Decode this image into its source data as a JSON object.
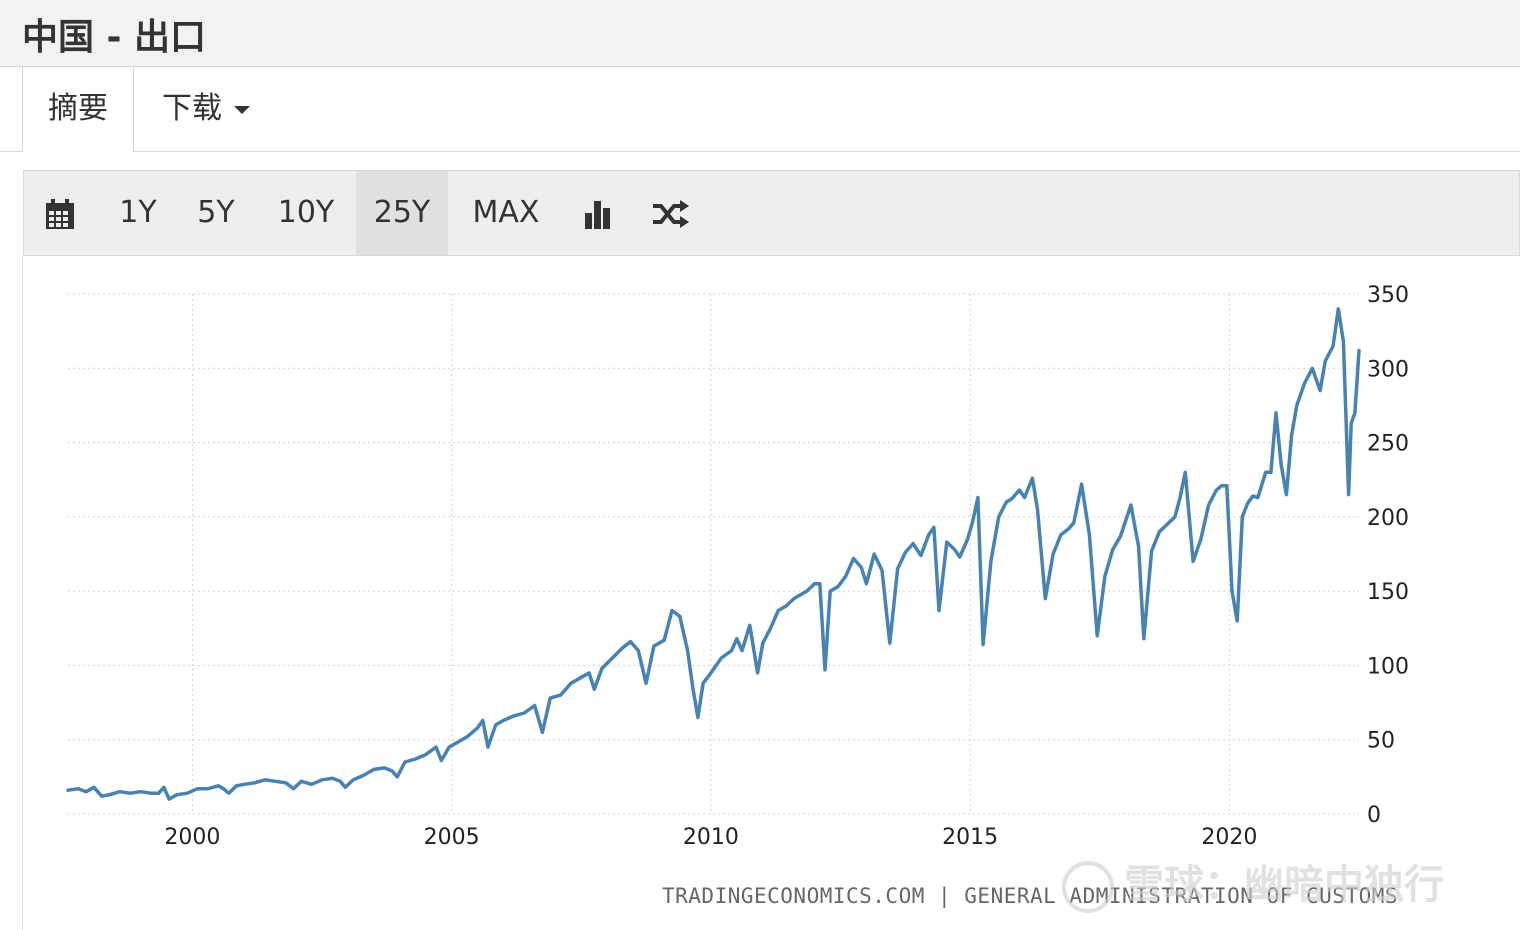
{
  "page": {
    "title": "中国 - 出口"
  },
  "tabs": [
    {
      "label": "摘要"
    },
    {
      "label": "下载"
    }
  ],
  "toolbar": {
    "calendar_icon": "calendar-icon",
    "ranges": [
      "1Y",
      "5Y",
      "10Y",
      "25Y",
      "MAX"
    ],
    "selected_range": "25Y",
    "bar_chart_icon": "bar-chart-icon",
    "shuffle_icon": "shuffle-icon"
  },
  "credit": "TRADINGECONOMICS.COM | GENERAL ADMINISTRATION OF CUSTOMS",
  "watermark": "雪球：幽暗中独行",
  "colors": {
    "line": "#4682b4",
    "grid": "#d3d3d3"
  },
  "chart_data": {
    "type": "line",
    "title": "",
    "xlabel": "",
    "ylabel": "",
    "x_ticks": [
      2000,
      2005,
      2010,
      2015,
      2020
    ],
    "y_ticks": [
      0,
      50,
      100,
      150,
      200,
      250,
      300,
      350
    ],
    "xlim": [
      1997.6,
      2022.5
    ],
    "ylim": [
      0,
      350
    ],
    "grid": true,
    "y_axis_side": "right",
    "series": [
      {
        "name": "",
        "points": [
          [
            1997.6,
            16
          ],
          [
            1997.8,
            17
          ],
          [
            1997.95,
            15
          ],
          [
            1998.1,
            18
          ],
          [
            1998.25,
            12
          ],
          [
            1998.4,
            13
          ],
          [
            1998.6,
            15
          ],
          [
            1998.8,
            14
          ],
          [
            1999.0,
            15
          ],
          [
            1999.2,
            14
          ],
          [
            1999.35,
            14
          ],
          [
            1999.45,
            18
          ],
          [
            1999.55,
            10
          ],
          [
            1999.7,
            13
          ],
          [
            1999.9,
            14
          ],
          [
            2000.1,
            17
          ],
          [
            2000.3,
            17
          ],
          [
            2000.5,
            19
          ],
          [
            2000.6,
            17
          ],
          [
            2000.7,
            14
          ],
          [
            2000.85,
            19
          ],
          [
            2001.0,
            20
          ],
          [
            2001.2,
            21
          ],
          [
            2001.4,
            23
          ],
          [
            2001.6,
            22
          ],
          [
            2001.8,
            21
          ],
          [
            2001.95,
            17
          ],
          [
            2002.1,
            22
          ],
          [
            2002.3,
            20
          ],
          [
            2002.5,
            23
          ],
          [
            2002.7,
            24
          ],
          [
            2002.85,
            22
          ],
          [
            2002.95,
            18
          ],
          [
            2003.1,
            23
          ],
          [
            2003.3,
            26
          ],
          [
            2003.5,
            30
          ],
          [
            2003.7,
            31
          ],
          [
            2003.85,
            29
          ],
          [
            2003.95,
            25
          ],
          [
            2004.1,
            35
          ],
          [
            2004.3,
            37
          ],
          [
            2004.5,
            40
          ],
          [
            2004.7,
            45
          ],
          [
            2004.8,
            36
          ],
          [
            2004.95,
            45
          ],
          [
            2005.1,
            48
          ],
          [
            2005.3,
            52
          ],
          [
            2005.5,
            58
          ],
          [
            2005.6,
            63
          ],
          [
            2005.7,
            45
          ],
          [
            2005.85,
            60
          ],
          [
            2006.0,
            63
          ],
          [
            2006.2,
            66
          ],
          [
            2006.4,
            68
          ],
          [
            2006.6,
            73
          ],
          [
            2006.75,
            55
          ],
          [
            2006.9,
            78
          ],
          [
            2007.1,
            80
          ],
          [
            2007.3,
            88
          ],
          [
            2007.5,
            92
          ],
          [
            2007.65,
            95
          ],
          [
            2007.75,
            84
          ],
          [
            2007.9,
            98
          ],
          [
            2008.1,
            105
          ],
          [
            2008.3,
            112
          ],
          [
            2008.45,
            116
          ],
          [
            2008.6,
            110
          ],
          [
            2008.75,
            88
          ],
          [
            2008.9,
            113
          ],
          [
            2009.1,
            117
          ],
          [
            2009.25,
            137
          ],
          [
            2009.4,
            133
          ],
          [
            2009.55,
            110
          ],
          [
            2009.65,
            85
          ],
          [
            2009.75,
            65
          ],
          [
            2009.85,
            88
          ],
          [
            2010.0,
            95
          ],
          [
            2010.2,
            105
          ],
          [
            2010.4,
            110
          ],
          [
            2010.5,
            118
          ],
          [
            2010.6,
            110
          ],
          [
            2010.75,
            127
          ],
          [
            2010.9,
            95
          ],
          [
            2011.0,
            115
          ],
          [
            2011.15,
            125
          ],
          [
            2011.3,
            137
          ],
          [
            2011.45,
            140
          ],
          [
            2011.6,
            145
          ],
          [
            2011.75,
            148
          ],
          [
            2011.85,
            150
          ],
          [
            2012.0,
            155
          ],
          [
            2012.1,
            155
          ],
          [
            2012.2,
            97
          ],
          [
            2012.3,
            150
          ],
          [
            2012.45,
            153
          ],
          [
            2012.6,
            160
          ],
          [
            2012.75,
            172
          ],
          [
            2012.9,
            166
          ],
          [
            2013.0,
            155
          ],
          [
            2013.15,
            175
          ],
          [
            2013.3,
            164
          ],
          [
            2013.45,
            115
          ],
          [
            2013.6,
            165
          ],
          [
            2013.75,
            176
          ],
          [
            2013.9,
            182
          ],
          [
            2014.05,
            174
          ],
          [
            2014.2,
            188
          ],
          [
            2014.3,
            193
          ],
          [
            2014.4,
            137
          ],
          [
            2014.55,
            183
          ],
          [
            2014.7,
            178
          ],
          [
            2014.8,
            173
          ],
          [
            2014.95,
            185
          ],
          [
            2015.05,
            197
          ],
          [
            2015.15,
            213
          ],
          [
            2015.25,
            114
          ],
          [
            2015.4,
            170
          ],
          [
            2015.55,
            200
          ],
          [
            2015.7,
            210
          ],
          [
            2015.8,
            212
          ],
          [
            2015.95,
            218
          ],
          [
            2016.05,
            213
          ],
          [
            2016.2,
            226
          ],
          [
            2016.3,
            205
          ],
          [
            2016.45,
            145
          ],
          [
            2016.6,
            175
          ],
          [
            2016.75,
            188
          ],
          [
            2016.9,
            192
          ],
          [
            2017.0,
            196
          ],
          [
            2017.15,
            222
          ],
          [
            2017.3,
            188
          ],
          [
            2017.45,
            120
          ],
          [
            2017.6,
            160
          ],
          [
            2017.75,
            178
          ],
          [
            2017.9,
            187
          ],
          [
            2018.1,
            208
          ],
          [
            2018.25,
            180
          ],
          [
            2018.35,
            118
          ],
          [
            2018.5,
            177
          ],
          [
            2018.65,
            190
          ],
          [
            2018.8,
            195
          ],
          [
            2018.95,
            200
          ],
          [
            2019.05,
            213
          ],
          [
            2019.15,
            230
          ],
          [
            2019.3,
            170
          ],
          [
            2019.45,
            185
          ],
          [
            2019.6,
            208
          ],
          [
            2019.75,
            218
          ],
          [
            2019.85,
            221
          ],
          [
            2019.95,
            221
          ],
          [
            2020.05,
            150
          ],
          [
            2020.15,
            130
          ],
          [
            2020.25,
            200
          ],
          [
            2020.35,
            209
          ],
          [
            2020.45,
            214
          ],
          [
            2020.55,
            213
          ],
          [
            2020.7,
            230
          ],
          [
            2020.8,
            230
          ],
          [
            2020.9,
            270
          ],
          [
            2021.0,
            235
          ],
          [
            2021.1,
            215
          ],
          [
            2021.2,
            255
          ],
          [
            2021.3,
            275
          ],
          [
            2021.45,
            290
          ],
          [
            2021.6,
            300
          ],
          [
            2021.75,
            285
          ],
          [
            2021.85,
            305
          ],
          [
            2022.0,
            315
          ],
          [
            2022.1,
            340
          ],
          [
            2022.2,
            318
          ],
          [
            2022.3,
            215
          ],
          [
            2022.35,
            263
          ],
          [
            2022.42,
            270
          ],
          [
            2022.5,
            312
          ]
        ]
      }
    ]
  }
}
